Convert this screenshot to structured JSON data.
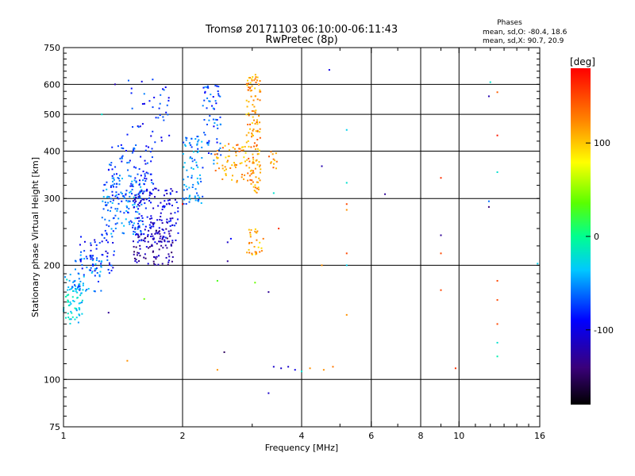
{
  "chart_data": {
    "type": "scatter",
    "title": "Tromsø 20171103 06:10:00-06:11:43",
    "subtitle": "RwPretec (8p)",
    "xlabel": "Frequency [MHz]",
    "ylabel": "Stationary phase Virtual Height [km]",
    "x_scale": "log",
    "y_scale": "log",
    "xlim": [
      1,
      16
    ],
    "ylim": [
      75,
      750
    ],
    "x_ticks": [
      1,
      2,
      4,
      6,
      8,
      10,
      16
    ],
    "y_ticks": [
      75,
      100,
      200,
      300,
      400,
      500,
      600,
      750
    ],
    "grid": true,
    "info": {
      "heading": "Phases",
      "line1": "mean, sd,O: -80.4, 18.6",
      "line2": "mean, sd,X:  90.7, 20.9"
    },
    "colorbar": {
      "label": "[deg]",
      "range": [
        -180,
        180
      ],
      "ticks": [
        100,
        0,
        -100
      ]
    },
    "clusters": [
      {
        "f": [
          1.0,
          1.12
        ],
        "h": [
          140,
          190
        ],
        "phase": -30,
        "n": 70
      },
      {
        "f": [
          1.05,
          1.25
        ],
        "h": [
          170,
          215
        ],
        "phase": -55,
        "n": 60
      },
      {
        "f": [
          1.1,
          1.35
        ],
        "h": [
          190,
          240
        ],
        "phase": -85,
        "n": 50
      },
      {
        "f": [
          1.25,
          1.6
        ],
        "h": [
          240,
          340
        ],
        "phase": -60,
        "n": 140
      },
      {
        "f": [
          1.3,
          1.7
        ],
        "h": [
          300,
          420
        ],
        "phase": -75,
        "n": 90
      },
      {
        "f": [
          1.5,
          1.95
        ],
        "h": [
          230,
          320
        ],
        "phase": -100,
        "n": 150
      },
      {
        "f": [
          1.5,
          1.9
        ],
        "h": [
          200,
          250
        ],
        "phase": -125,
        "n": 90
      },
      {
        "f": [
          1.45,
          1.9
        ],
        "h": [
          420,
          620
        ],
        "phase": -80,
        "n": 40
      },
      {
        "f": [
          2.0,
          2.25
        ],
        "h": [
          290,
          440
        ],
        "phase": -55,
        "n": 80
      },
      {
        "f": [
          2.25,
          2.5
        ],
        "h": [
          370,
          600
        ],
        "phase": -70,
        "n": 60
      },
      {
        "f": [
          2.4,
          2.9
        ],
        "h": [
          330,
          420
        ],
        "phase": 115,
        "n": 60
      },
      {
        "f": [
          2.9,
          3.15
        ],
        "h": [
          310,
          640
        ],
        "phase": 118,
        "n": 140
      },
      {
        "f": [
          2.9,
          3.2
        ],
        "h": [
          210,
          250
        ],
        "phase": 110,
        "n": 30
      },
      {
        "f": [
          3.3,
          3.55
        ],
        "h": [
          360,
          400
        ],
        "phase": 120,
        "n": 12
      }
    ],
    "points": [
      {
        "f": 4.7,
        "h": 655,
        "phase": -100
      },
      {
        "f": 4.5,
        "h": 365,
        "phase": -120
      },
      {
        "f": 5.2,
        "h": 455,
        "phase": -30
      },
      {
        "f": 5.2,
        "h": 330,
        "phase": -20
      },
      {
        "f": 5.2,
        "h": 290,
        "phase": 150
      },
      {
        "f": 5.2,
        "h": 280,
        "phase": 120
      },
      {
        "f": 5.2,
        "h": 215,
        "phase": 150
      },
      {
        "f": 5.2,
        "h": 200,
        "phase": -30
      },
      {
        "f": 5.2,
        "h": 148,
        "phase": 120
      },
      {
        "f": 4.5,
        "h": 200,
        "phase": 120
      },
      {
        "f": 3.2,
        "h": 235,
        "phase": 130
      },
      {
        "f": 3.3,
        "h": 170,
        "phase": -130
      },
      {
        "f": 3.3,
        "h": 92,
        "phase": -110
      },
      {
        "f": 3.4,
        "h": 108,
        "phase": -110
      },
      {
        "f": 3.55,
        "h": 107,
        "phase": -110
      },
      {
        "f": 3.7,
        "h": 108,
        "phase": -110
      },
      {
        "f": 3.85,
        "h": 106,
        "phase": -100
      },
      {
        "f": 4.0,
        "h": 105,
        "phase": -20
      },
      {
        "f": 4.2,
        "h": 107,
        "phase": 120
      },
      {
        "f": 4.55,
        "h": 106,
        "phase": 120
      },
      {
        "f": 4.8,
        "h": 108,
        "phase": 130
      },
      {
        "f": 2.55,
        "h": 118,
        "phase": -150
      },
      {
        "f": 2.45,
        "h": 106,
        "phase": 120
      },
      {
        "f": 1.45,
        "h": 112,
        "phase": 120
      },
      {
        "f": 1.6,
        "h": 163,
        "phase": 40
      },
      {
        "f": 2.45,
        "h": 182,
        "phase": 30
      },
      {
        "f": 2.6,
        "h": 230,
        "phase": -110
      },
      {
        "f": 2.65,
        "h": 235,
        "phase": -90
      },
      {
        "f": 2.6,
        "h": 205,
        "phase": -130
      },
      {
        "f": 3.05,
        "h": 180,
        "phase": 40
      },
      {
        "f": 6.5,
        "h": 308,
        "phase": -130
      },
      {
        "f": 9.0,
        "h": 340,
        "phase": 160
      },
      {
        "f": 9.0,
        "h": 240,
        "phase": -130
      },
      {
        "f": 9.0,
        "h": 215,
        "phase": 150
      },
      {
        "f": 9.0,
        "h": 172,
        "phase": 150
      },
      {
        "f": 9.8,
        "h": 107,
        "phase": 160
      },
      {
        "f": 12.0,
        "h": 608,
        "phase": -20
      },
      {
        "f": 11.9,
        "h": 558,
        "phase": -120
      },
      {
        "f": 12.5,
        "h": 572,
        "phase": 140
      },
      {
        "f": 12.5,
        "h": 440,
        "phase": 170
      },
      {
        "f": 12.5,
        "h": 352,
        "phase": -20
      },
      {
        "f": 11.9,
        "h": 295,
        "phase": -60
      },
      {
        "f": 11.9,
        "h": 285,
        "phase": -140
      },
      {
        "f": 12.5,
        "h": 182,
        "phase": 150
      },
      {
        "f": 12.5,
        "h": 162,
        "phase": 150
      },
      {
        "f": 12.5,
        "h": 140,
        "phase": 150
      },
      {
        "f": 12.5,
        "h": 125,
        "phase": -20
      },
      {
        "f": 12.5,
        "h": 115,
        "phase": -10
      },
      {
        "f": 15.8,
        "h": 202,
        "phase": -30
      },
      {
        "f": 1.25,
        "h": 500,
        "phase": -20
      },
      {
        "f": 1.35,
        "h": 600,
        "phase": -120
      },
      {
        "f": 1.3,
        "h": 150,
        "phase": -130
      },
      {
        "f": 2.0,
        "h": 290,
        "phase": 170
      },
      {
        "f": 3.4,
        "h": 310,
        "phase": -20
      },
      {
        "f": 3.5,
        "h": 250,
        "phase": 160
      }
    ]
  }
}
